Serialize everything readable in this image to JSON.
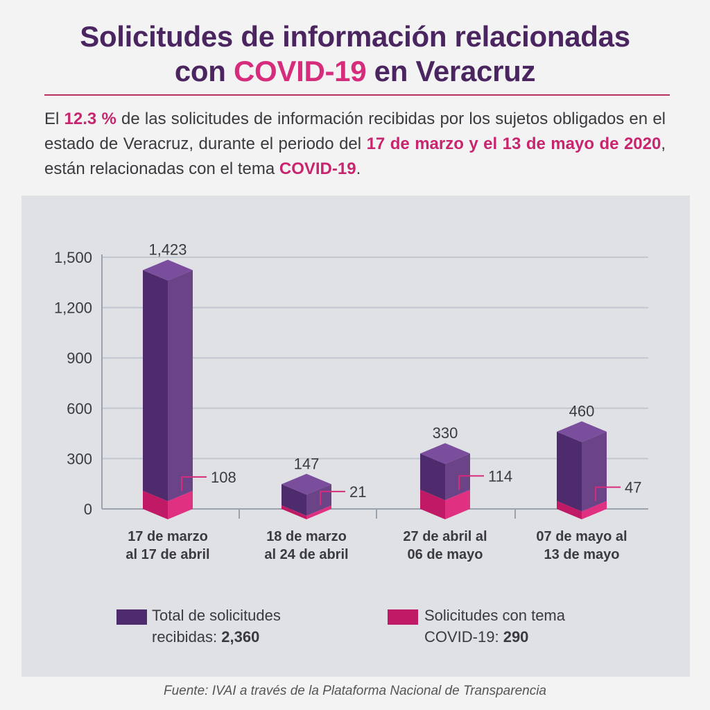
{
  "header": {
    "title_line1": "Solicitudes de información relacionadas",
    "title_pre": "con ",
    "title_accent": "COVID-19",
    "title_post": " en Veracruz"
  },
  "intro": {
    "t1": "El ",
    "h1": "12.3 %",
    "t2": " de las solicitudes de información recibidas por los sujetos obligados en el estado de Veracruz, durante el periodo del ",
    "h2": "17 de marzo y el 13 de mayo de 2020",
    "t3": ", están relacionadas con el tema ",
    "h3": "COVID-19",
    "t4": "."
  },
  "chart_data": {
    "type": "bar",
    "categories": [
      [
        "17 de marzo",
        "al 17 de abril"
      ],
      [
        "18 de marzo",
        "al 24 de abril"
      ],
      [
        "27 de abril al",
        "06 de mayo"
      ],
      [
        "07 de mayo al",
        "13 de mayo"
      ]
    ],
    "series": [
      {
        "name": "Total de solicitudes recibidas",
        "values": [
          1423,
          147,
          330,
          460
        ],
        "labels": [
          "1,423",
          "147",
          "330",
          "460"
        ]
      },
      {
        "name": "Solicitudes con tema COVID-19",
        "values": [
          108,
          21,
          114,
          47
        ],
        "labels": [
          "108",
          "21",
          "114",
          "47"
        ]
      }
    ],
    "y_ticks": [
      0,
      300,
      600,
      900,
      1200,
      1500
    ],
    "y_tick_labels": [
      "0",
      "300",
      "600",
      "900",
      "1,200",
      "1,500"
    ],
    "ylim": [
      0,
      1500
    ],
    "grid": true,
    "colors": {
      "total_top": "#7a4e9c",
      "total_front": "#4e2b6c",
      "total_right": "#6b4387",
      "covid_top": "#ee4f97",
      "covid_front": "#c01a67",
      "covid_right": "#e03081",
      "grid": "#c2c7cf",
      "axis": "#9aa2ad",
      "leader": "#d62c7c"
    }
  },
  "legend": {
    "total_label": "Total de solicitudes",
    "total_label2": "recibidas: ",
    "total_value": "2,360",
    "covid_label": "Solicitudes con tema",
    "covid_label2": "COVID-19: ",
    "covid_value": "290"
  },
  "source": "Fuente: IVAI a través de la Plataforma Nacional de Transparencia"
}
